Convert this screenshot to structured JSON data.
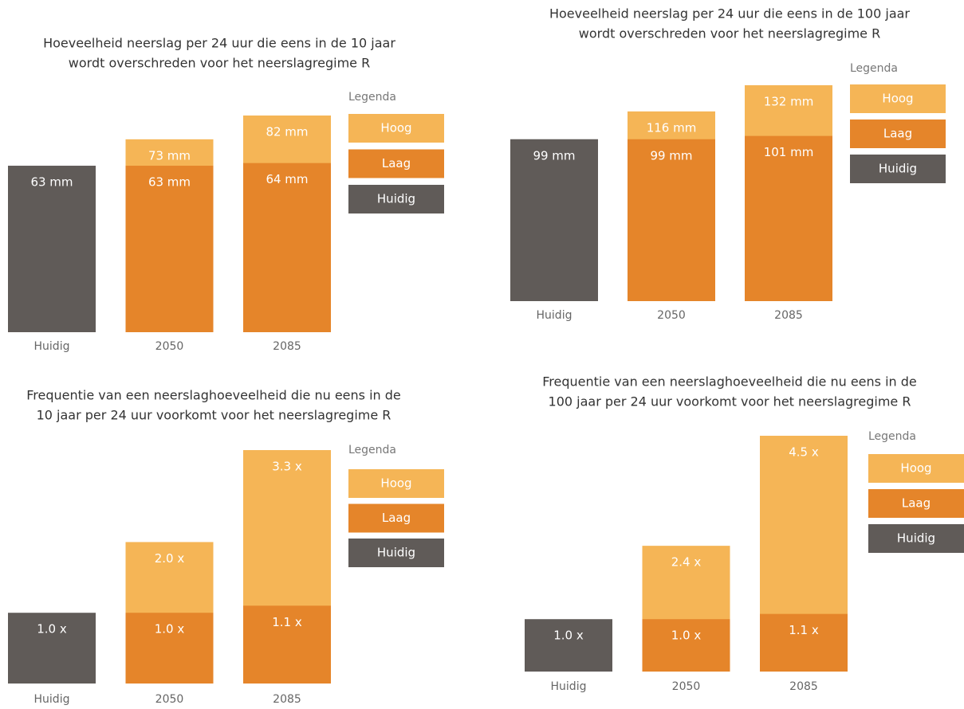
{
  "chart_data": [
    {
      "type": "bar",
      "barmode": "overlay",
      "title": [
        "Hoeveelheid neerslag per 24 uur die eens in de 10 jaar",
        "wordt overschreden voor het neerslagregime R"
      ],
      "legend_title": "Legenda",
      "categories": [
        "Huidig",
        "2050",
        "2085"
      ],
      "series": [
        {
          "name": "Hoog",
          "color": "#f5b556",
          "values": [
            null,
            73,
            82
          ],
          "value_labels": [
            null,
            "73 mm",
            "82 mm"
          ]
        },
        {
          "name": "Laag",
          "color": "#e5852a",
          "values": [
            null,
            63,
            64
          ],
          "value_labels": [
            null,
            "63 mm",
            "64 mm"
          ]
        },
        {
          "name": "Huidig",
          "color": "#605b58",
          "values": [
            63,
            null,
            null
          ],
          "value_labels": [
            "63 mm",
            null,
            null
          ]
        }
      ]
    },
    {
      "type": "bar",
      "barmode": "overlay",
      "title": [
        "Hoeveelheid neerslag per 24 uur die eens in de 100 jaar",
        "wordt overschreden voor het neerslagregime R"
      ],
      "legend_title": "Legenda",
      "categories": [
        "Huidig",
        "2050",
        "2085"
      ],
      "series": [
        {
          "name": "Hoog",
          "color": "#f5b556",
          "values": [
            null,
            116,
            132
          ],
          "value_labels": [
            null,
            "116 mm",
            "132 mm"
          ]
        },
        {
          "name": "Laag",
          "color": "#e5852a",
          "values": [
            null,
            99,
            101
          ],
          "value_labels": [
            null,
            "99 mm",
            "101 mm"
          ]
        },
        {
          "name": "Huidig",
          "color": "#605b58",
          "values": [
            99,
            null,
            null
          ],
          "value_labels": [
            "99 mm",
            null,
            null
          ]
        }
      ]
    },
    {
      "type": "bar",
      "barmode": "overlay",
      "title": [
        "Frequentie van een neerslaghoeveelheid die nu eens in de",
        "10 jaar per 24 uur voorkomt voor het neerslagregime R"
      ],
      "legend_title": "Legenda",
      "categories": [
        "Huidig",
        "2050",
        "2085"
      ],
      "series": [
        {
          "name": "Hoog",
          "color": "#f5b556",
          "values": [
            null,
            2.0,
            3.3
          ],
          "value_labels": [
            null,
            "2.0 x",
            "3.3 x"
          ]
        },
        {
          "name": "Laag",
          "color": "#e5852a",
          "values": [
            null,
            1.0,
            1.1
          ],
          "value_labels": [
            null,
            "1.0 x",
            "1.1 x"
          ]
        },
        {
          "name": "Huidig",
          "color": "#605b58",
          "values": [
            1.0,
            null,
            null
          ],
          "value_labels": [
            "1.0 x",
            null,
            null
          ]
        }
      ]
    },
    {
      "type": "bar",
      "barmode": "overlay",
      "title": [
        "Frequentie van een neerslaghoeveelheid die nu eens in de",
        "100 jaar per 24 uur voorkomt voor het neerslagregime R"
      ],
      "legend_title": "Legenda",
      "categories": [
        "Huidig",
        "2050",
        "2085"
      ],
      "series": [
        {
          "name": "Hoog",
          "color": "#f5b556",
          "values": [
            null,
            2.4,
            4.5
          ],
          "value_labels": [
            null,
            "2.4 x",
            "4.5 x"
          ]
        },
        {
          "name": "Laag",
          "color": "#e5852a",
          "values": [
            null,
            1.0,
            1.1
          ],
          "value_labels": [
            null,
            "1.0 x",
            "1.1 x"
          ]
        },
        {
          "name": "Huidig",
          "color": "#605b58",
          "values": [
            1.0,
            null,
            null
          ],
          "value_labels": [
            "1.0 x",
            null,
            null
          ]
        }
      ]
    }
  ]
}
